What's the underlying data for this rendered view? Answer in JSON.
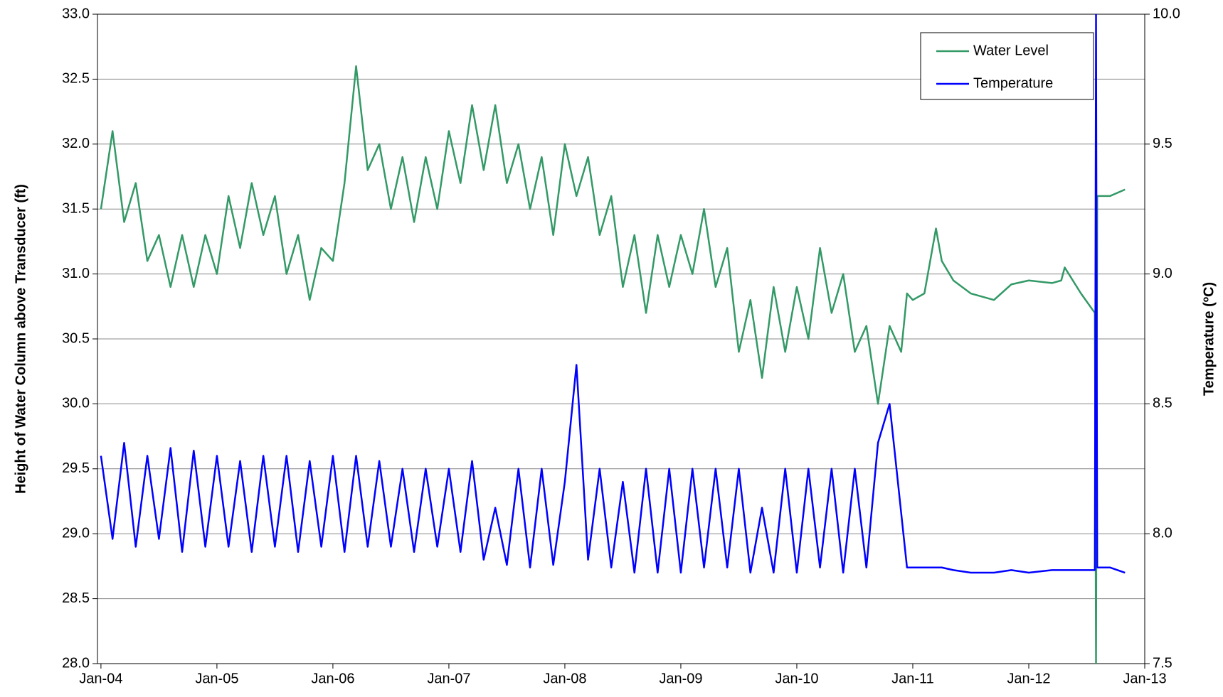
{
  "chart_data": {
    "type": "line",
    "y_label": "Height of Water Column above Transducer (ft)",
    "y2_label": "Temperature (ºC)",
    "x": [
      2004.0,
      2004.1,
      2004.2,
      2004.3,
      2004.4,
      2004.5,
      2004.6,
      2004.7,
      2004.8,
      2004.9,
      2005.0,
      2005.1,
      2005.2,
      2005.3,
      2005.4,
      2005.5,
      2005.6,
      2005.7,
      2005.8,
      2005.9,
      2006.0,
      2006.1,
      2006.2,
      2006.3,
      2006.4,
      2006.5,
      2006.6,
      2006.7,
      2006.8,
      2006.9,
      2007.0,
      2007.1,
      2007.2,
      2007.3,
      2007.4,
      2007.5,
      2007.6,
      2007.7,
      2007.8,
      2007.9,
      2008.0,
      2008.1,
      2008.2,
      2008.3,
      2008.4,
      2008.5,
      2008.6,
      2008.7,
      2008.8,
      2008.9,
      2009.0,
      2009.1,
      2009.2,
      2009.3,
      2009.4,
      2009.5,
      2009.6,
      2009.7,
      2009.8,
      2009.9,
      2010.0,
      2010.1,
      2010.2,
      2010.3,
      2010.4,
      2010.5,
      2010.6,
      2010.7,
      2010.8,
      2010.9,
      2010.95,
      2011.0,
      2011.1,
      2011.2,
      2011.25,
      2011.35,
      2011.5,
      2011.7,
      2011.85,
      2012.0,
      2012.2,
      2012.28,
      2012.31,
      2012.45,
      2012.57,
      2012.58,
      2012.59,
      2012.6,
      2012.7,
      2012.83
    ],
    "series": [
      {
        "name": "Water Level",
        "color": "#339966",
        "axis": "y",
        "values": [
          31.5,
          32.1,
          31.4,
          31.7,
          31.1,
          31.3,
          30.9,
          31.3,
          30.9,
          31.3,
          31.0,
          31.6,
          31.2,
          31.7,
          31.3,
          31.6,
          31.0,
          31.3,
          30.8,
          31.2,
          31.1,
          31.7,
          32.6,
          31.8,
          32.0,
          31.5,
          31.9,
          31.4,
          31.9,
          31.5,
          32.1,
          31.7,
          32.3,
          31.8,
          32.3,
          31.7,
          32.0,
          31.5,
          31.9,
          31.3,
          32.0,
          31.6,
          31.9,
          31.3,
          31.6,
          30.9,
          31.3,
          30.7,
          31.3,
          30.9,
          31.3,
          31.0,
          31.5,
          30.9,
          31.2,
          30.4,
          30.8,
          30.2,
          30.9,
          30.4,
          30.9,
          30.5,
          31.2,
          30.7,
          31.0,
          30.4,
          30.6,
          30.0,
          30.6,
          30.4,
          30.85,
          30.8,
          30.85,
          31.35,
          31.1,
          30.95,
          30.85,
          30.8,
          30.92,
          30.95,
          30.93,
          30.95,
          31.05,
          30.85,
          30.7,
          28.0,
          31.6,
          31.6,
          31.6,
          31.65
        ]
      },
      {
        "name": "Temperature",
        "color": "#0000ff",
        "axis": "y2",
        "values": [
          8.3,
          7.98,
          8.35,
          7.95,
          8.3,
          7.98,
          8.33,
          7.93,
          8.32,
          7.95,
          8.3,
          7.95,
          8.28,
          7.93,
          8.3,
          7.95,
          8.3,
          7.93,
          8.28,
          7.95,
          8.3,
          7.93,
          8.3,
          7.95,
          8.28,
          7.95,
          8.25,
          7.93,
          8.25,
          7.95,
          8.25,
          7.93,
          8.28,
          7.9,
          8.1,
          7.88,
          8.25,
          7.87,
          8.25,
          7.88,
          8.2,
          8.65,
          7.9,
          8.25,
          7.87,
          8.2,
          7.85,
          8.25,
          7.85,
          8.25,
          7.85,
          8.25,
          7.87,
          8.25,
          7.87,
          8.25,
          7.85,
          8.1,
          7.85,
          8.25,
          7.85,
          8.25,
          7.87,
          8.25,
          7.85,
          8.25,
          7.87,
          8.35,
          8.5,
          8.08,
          7.87,
          7.87,
          7.87,
          7.87,
          7.87,
          7.86,
          7.85,
          7.85,
          7.86,
          7.85,
          7.86,
          7.86,
          7.86,
          7.86,
          7.86,
          10.0,
          7.87,
          7.87,
          7.87,
          7.85
        ]
      }
    ],
    "xlim": [
      2003.97,
      2013.0
    ],
    "xticks": [
      {
        "value": 2004,
        "label": "Jan-04"
      },
      {
        "value": 2005,
        "label": "Jan-05"
      },
      {
        "value": 2006,
        "label": "Jan-06"
      },
      {
        "value": 2007,
        "label": "Jan-07"
      },
      {
        "value": 2008,
        "label": "Jan-08"
      },
      {
        "value": 2009,
        "label": "Jan-09"
      },
      {
        "value": 2010,
        "label": "Jan-10"
      },
      {
        "value": 2011,
        "label": "Jan-11"
      },
      {
        "value": 2012,
        "label": "Jan-12"
      },
      {
        "value": 2013,
        "label": "Jan-13"
      }
    ],
    "ylim": [
      28,
      33
    ],
    "yticks": [
      {
        "value": 28,
        "label": "28.0"
      },
      28.5,
      {
        "value": 29,
        "label": "29.0"
      },
      29.5,
      {
        "value": 30,
        "label": "30.0"
      },
      30.5,
      {
        "value": 31,
        "label": "31.0"
      },
      31.5,
      {
        "value": 32,
        "label": "32.0"
      },
      32.5,
      {
        "value": 33,
        "label": "33.0"
      }
    ],
    "y2lim": [
      7.5,
      10
    ],
    "y2ticks": [
      7.5,
      {
        "value": 8,
        "label": "8.0"
      },
      8.5,
      {
        "value": 9,
        "label": "9.0"
      },
      9.5,
      {
        "value": 10,
        "label": "10.0"
      }
    ],
    "grid": true,
    "legend": "upper right"
  }
}
